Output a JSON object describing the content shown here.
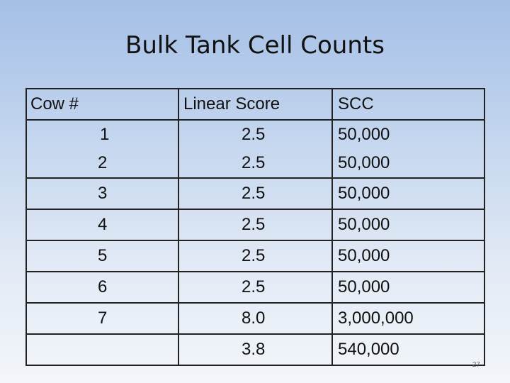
{
  "slide": {
    "title": "Bulk Tank Cell Counts",
    "page_number": "27"
  },
  "table": {
    "headers": {
      "cow": "Cow #",
      "linear_score": "Linear Score",
      "scc": "SCC"
    },
    "rows": [
      {
        "cow": "1",
        "linear_score": "2.5",
        "scc": "50,000"
      },
      {
        "cow": "2",
        "linear_score": "2.5",
        "scc": "50,000"
      },
      {
        "cow": "3",
        "linear_score": "2.5",
        "scc": "50,000"
      },
      {
        "cow": "4",
        "linear_score": "2.5",
        "scc": "50,000"
      },
      {
        "cow": "5",
        "linear_score": "2.5",
        "scc": "50,000"
      },
      {
        "cow": "6",
        "linear_score": "2.5",
        "scc": "50,000"
      },
      {
        "cow": "7",
        "linear_score": "8.0",
        "scc": "3,000,000"
      },
      {
        "cow": "",
        "linear_score": "3.8",
        "scc": "540,000"
      }
    ]
  }
}
